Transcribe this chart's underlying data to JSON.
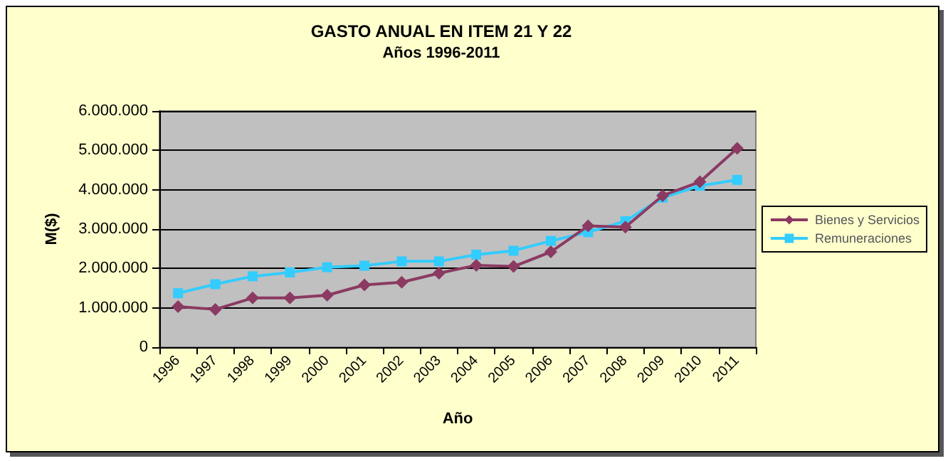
{
  "chart_data": {
    "type": "line",
    "title": "GASTO ANUAL EN ITEM 21 Y 22",
    "subtitle": "Años 1996-2011",
    "xlabel": "Año",
    "ylabel": "M($)",
    "categories": [
      "1996",
      "1997",
      "1998",
      "1999",
      "2000",
      "2001",
      "2002",
      "2003",
      "2004",
      "2005",
      "2006",
      "2007",
      "2008",
      "2009",
      "2010",
      "2011"
    ],
    "series": [
      {
        "name": "Bienes y Servicios",
        "color": "#8b3a62",
        "marker": "diamond",
        "values": [
          1030000,
          960000,
          1250000,
          1250000,
          1320000,
          1580000,
          1650000,
          1880000,
          2080000,
          2050000,
          2420000,
          3080000,
          3050000,
          3850000,
          4200000,
          5050000
        ]
      },
      {
        "name": "Remuneraciones",
        "color": "#33ccff",
        "marker": "square",
        "values": [
          1370000,
          1600000,
          1800000,
          1900000,
          2030000,
          2070000,
          2180000,
          2180000,
          2350000,
          2450000,
          2700000,
          2920000,
          3200000,
          3800000,
          4100000,
          4250000
        ]
      }
    ],
    "ylim": [
      0,
      6000000
    ],
    "yticks": [
      0,
      {
        "value": 1000000,
        "label": "1.000.000"
      },
      {
        "value": 2000000,
        "label": "2.000.000"
      },
      {
        "value": 3000000,
        "label": "3.000.000"
      },
      {
        "value": 4000000,
        "label": "4.000.000"
      },
      {
        "value": 5000000,
        "label": "5.000.000"
      },
      {
        "value": 6000000,
        "label": "6.000.000"
      }
    ],
    "grid": "y",
    "legend": "right",
    "line_style": "solid"
  }
}
